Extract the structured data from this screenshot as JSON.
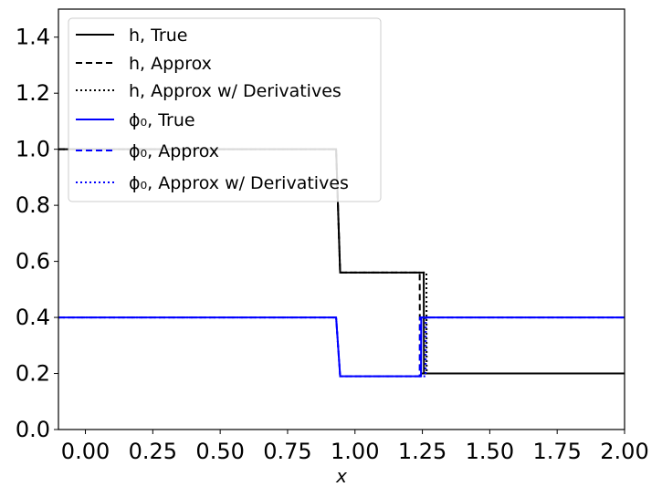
{
  "chart_data": {
    "type": "line",
    "title": "",
    "xlabel": "x",
    "ylabel": "",
    "xlim": [
      -0.1,
      2.0
    ],
    "ylim": [
      0.0,
      1.5
    ],
    "xticks": [
      "0.00",
      "0.25",
      "0.50",
      "0.75",
      "1.00",
      "1.25",
      "1.50",
      "1.75",
      "2.00"
    ],
    "yticks": [
      "0.0",
      "0.2",
      "0.4",
      "0.6",
      "0.8",
      "1.0",
      "1.2",
      "1.4"
    ],
    "grid": false,
    "legend_position": "top-left",
    "series": [
      {
        "name": "h, True",
        "color": "#000000",
        "dash": "solid",
        "x": [
          -0.1,
          0.93,
          0.945,
          1.255,
          1.256,
          2.0
        ],
        "y": [
          1.0,
          1.0,
          0.56,
          0.56,
          0.2,
          0.2
        ]
      },
      {
        "name": "h, Approx",
        "color": "#000000",
        "dash": "dashed",
        "x": [
          -0.1,
          0.93,
          0.945,
          1.24,
          1.241,
          2.0
        ],
        "y": [
          1.0,
          1.0,
          0.56,
          0.56,
          0.2,
          0.2
        ]
      },
      {
        "name": "h, Approx w/ Derivatives",
        "color": "#000000",
        "dash": "dotted",
        "x": [
          -0.1,
          0.93,
          0.945,
          1.265,
          1.266,
          2.0
        ],
        "y": [
          1.0,
          1.0,
          0.56,
          0.56,
          0.2,
          0.2
        ]
      },
      {
        "name": "ϕ₀, True",
        "color": "#0000ff",
        "dash": "solid",
        "x": [
          -0.1,
          0.93,
          0.945,
          1.245,
          1.246,
          2.0
        ],
        "y": [
          0.4,
          0.4,
          0.19,
          0.19,
          0.4,
          0.4
        ]
      },
      {
        "name": "ϕ₀, Approx",
        "color": "#0000ff",
        "dash": "dashed",
        "x": [
          -0.1,
          0.93,
          0.945,
          1.24,
          1.241,
          2.0
        ],
        "y": [
          0.4,
          0.4,
          0.19,
          0.19,
          0.4,
          0.4
        ]
      },
      {
        "name": "ϕ₀, Approx w/ Derivatives",
        "color": "#0000ff",
        "dash": "dotted",
        "x": [
          -0.1,
          0.93,
          0.945,
          1.262,
          1.263,
          2.0
        ],
        "y": [
          0.4,
          0.4,
          0.19,
          0.19,
          0.4,
          0.4
        ]
      }
    ]
  }
}
